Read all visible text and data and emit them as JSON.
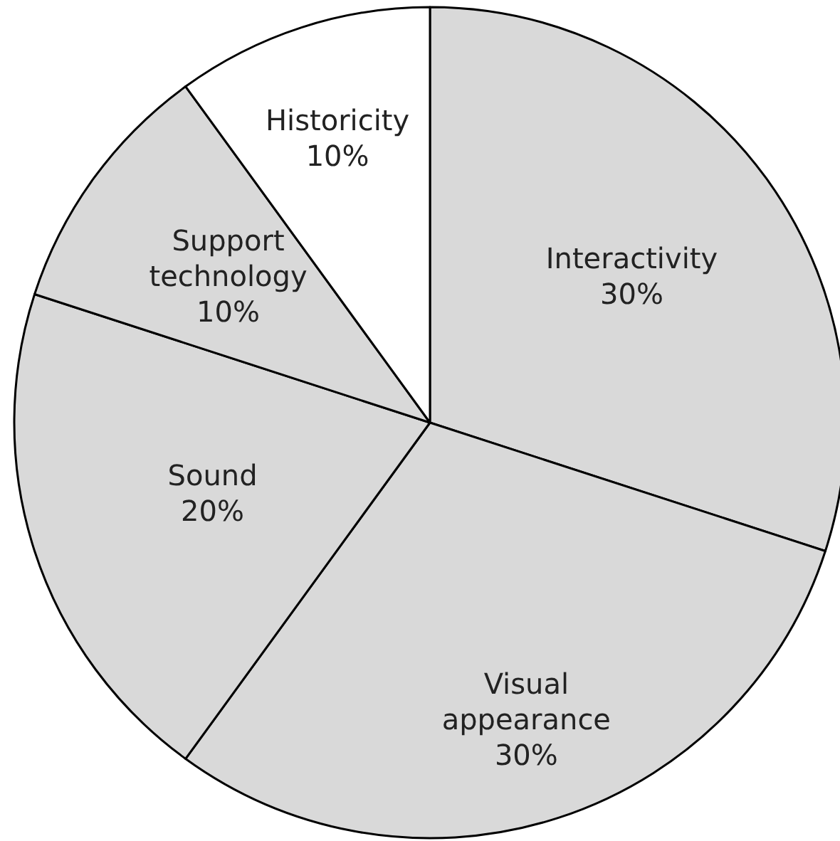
{
  "chart_data": {
    "type": "pie",
    "categories": [
      "Interactivity",
      "Visual appearance",
      "Sound",
      "Support technology",
      "Historicity"
    ],
    "values": [
      30,
      30,
      20,
      10,
      10
    ],
    "colors": [
      "#d9d9d9",
      "#d9d9d9",
      "#d9d9d9",
      "#d9d9d9",
      "#ffffff"
    ],
    "value_labels": [
      "30%",
      "30%",
      "20%",
      "10%",
      "10%"
    ]
  }
}
